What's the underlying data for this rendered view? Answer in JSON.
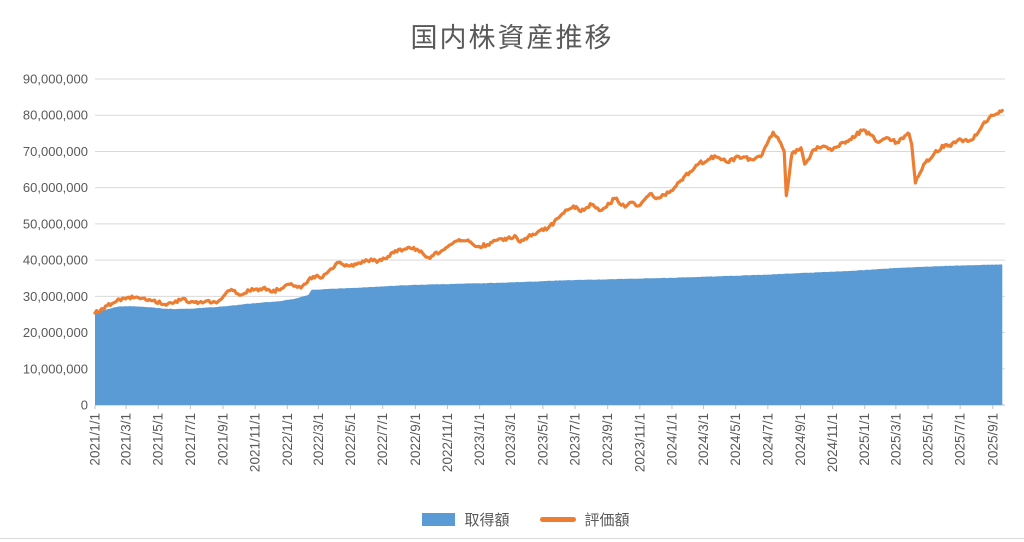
{
  "chart_data": {
    "type": "combo-area-line",
    "title": "国内株資産推移",
    "legend_position": "bottom",
    "grid": "horizontal-only",
    "colors": {
      "text": "#595959",
      "gridline": "#D9D9D9",
      "axis_line": "#BFBFBF",
      "background": "#FFFFFF"
    },
    "y_axis": {
      "min": 0,
      "max": 90000000,
      "step": 10000000,
      "tick_labels": [
        "0",
        "10,000,000",
        "20,000,000",
        "30,000,000",
        "40,000,000",
        "50,000,000",
        "60,000,000",
        "70,000,000",
        "80,000,000",
        "90,000,000"
      ]
    },
    "x_axis": {
      "start": "2021/1/1",
      "end": "2025/9/26",
      "tick_labels": [
        "2021/1/1",
        "2021/3/1",
        "2021/5/1",
        "2021/7/1",
        "2021/9/1",
        "2021/11/1",
        "2022/1/1",
        "2022/3/1",
        "2022/5/1",
        "2022/7/1",
        "2022/9/1",
        "2022/11/1",
        "2023/1/1",
        "2023/3/1",
        "2023/5/1",
        "2023/7/1",
        "2023/9/1",
        "2023/11/1",
        "2024/1/1",
        "2024/3/1",
        "2024/5/1",
        "2024/7/1",
        "2024/9/1",
        "2024/11/1",
        "2025/1/1",
        "2025/3/1",
        "2025/5/1",
        "2025/7/1",
        "2025/9/1"
      ]
    },
    "series": [
      {
        "name": "取得額",
        "type": "area",
        "color": "#5B9BD5",
        "points": [
          [
            "2021/1/1",
            25500000
          ],
          [
            "2021/1/20",
            26300000
          ],
          [
            "2021/2/15",
            27200000
          ],
          [
            "2021/3/10",
            27300000
          ],
          [
            "2021/4/15",
            27000000
          ],
          [
            "2021/5/20",
            26500000
          ],
          [
            "2021/7/1",
            26600000
          ],
          [
            "2021/8/15",
            27000000
          ],
          [
            "2021/9/15",
            27400000
          ],
          [
            "2021/10/15",
            27900000
          ],
          [
            "2021/11/15",
            28300000
          ],
          [
            "2021/12/15",
            28600000
          ],
          [
            "2022/1/15",
            29300000
          ],
          [
            "2022/2/10",
            30400000
          ],
          [
            "2022/2/16",
            31800000
          ],
          [
            "2022/3/15",
            32000000
          ],
          [
            "2022/5/1",
            32300000
          ],
          [
            "2022/6/15",
            32600000
          ],
          [
            "2022/8/1",
            33000000
          ],
          [
            "2022/10/1",
            33300000
          ],
          [
            "2022/12/1",
            33500000
          ],
          [
            "2023/2/1",
            33700000
          ],
          [
            "2023/4/1",
            34000000
          ],
          [
            "2023/5/15",
            34300000
          ],
          [
            "2023/7/1",
            34500000
          ],
          [
            "2023/9/1",
            34700000
          ],
          [
            "2023/11/1",
            34900000
          ],
          [
            "2024/1/1",
            35100000
          ],
          [
            "2024/3/1",
            35400000
          ],
          [
            "2024/5/1",
            35700000
          ],
          [
            "2024/7/1",
            36000000
          ],
          [
            "2024/8/15",
            36300000
          ],
          [
            "2024/10/1",
            36600000
          ],
          [
            "2024/12/1",
            37000000
          ],
          [
            "2025/1/15",
            37400000
          ],
          [
            "2025/3/1",
            37800000
          ],
          [
            "2025/4/10",
            38100000
          ],
          [
            "2025/5/15",
            38300000
          ],
          [
            "2025/7/1",
            38500000
          ],
          [
            "2025/8/15",
            38700000
          ],
          [
            "2025/9/19",
            38800000
          ]
        ]
      },
      {
        "name": "評価額",
        "type": "line",
        "color": "#ED7D31",
        "points": [
          [
            "2021/1/1",
            25400000
          ],
          [
            "2021/1/15",
            26600000
          ],
          [
            "2021/2/16",
            29200000
          ],
          [
            "2021/3/18",
            29700000
          ],
          [
            "2021/4/5",
            29500000
          ],
          [
            "2021/4/21",
            28800000
          ],
          [
            "2021/5/13",
            27800000
          ],
          [
            "2021/6/15",
            29200000
          ],
          [
            "2021/7/9",
            28300000
          ],
          [
            "2021/8/2",
            28800000
          ],
          [
            "2021/8/20",
            28200000
          ],
          [
            "2021/9/14",
            31600000
          ],
          [
            "2021/10/6",
            30400000
          ],
          [
            "2021/10/20",
            31500000
          ],
          [
            "2021/11/16",
            32300000
          ],
          [
            "2021/11/30",
            31300000
          ],
          [
            "2021/12/15",
            31800000
          ],
          [
            "2022/1/5",
            33300000
          ],
          [
            "2022/1/27",
            32300000
          ],
          [
            "2022/2/10",
            34500000
          ],
          [
            "2022/2/24",
            35600000
          ],
          [
            "2022/3/9",
            35200000
          ],
          [
            "2022/3/25",
            37600000
          ],
          [
            "2022/4/8",
            39300000
          ],
          [
            "2022/4/27",
            38400000
          ],
          [
            "2022/5/12",
            38800000
          ],
          [
            "2022/5/27",
            39500000
          ],
          [
            "2022/6/9",
            40300000
          ],
          [
            "2022/6/20",
            39400000
          ],
          [
            "2022/7/22",
            42000000
          ],
          [
            "2022/8/17",
            43400000
          ],
          [
            "2022/9/6",
            42800000
          ],
          [
            "2022/9/26",
            40700000
          ],
          [
            "2022/10/20",
            42500000
          ],
          [
            "2022/11/11",
            44600000
          ],
          [
            "2022/11/25",
            45300000
          ],
          [
            "2022/12/15",
            45000000
          ],
          [
            "2022/12/28",
            43700000
          ],
          [
            "2023/1/16",
            44300000
          ],
          [
            "2023/2/6",
            45800000
          ],
          [
            "2023/2/20",
            45500000
          ],
          [
            "2023/3/9",
            46800000
          ],
          [
            "2023/3/16",
            45200000
          ],
          [
            "2023/4/3",
            46500000
          ],
          [
            "2023/4/20",
            47600000
          ],
          [
            "2023/5/11",
            48800000
          ],
          [
            "2023/5/29",
            51500000
          ],
          [
            "2023/6/16",
            53800000
          ],
          [
            "2023/7/3",
            54800000
          ],
          [
            "2023/7/12",
            53400000
          ],
          [
            "2023/8/1",
            55300000
          ],
          [
            "2023/8/18",
            53700000
          ],
          [
            "2023/9/15",
            57000000
          ],
          [
            "2023/10/4",
            54600000
          ],
          [
            "2023/10/16",
            56000000
          ],
          [
            "2023/10/30",
            55000000
          ],
          [
            "2023/11/20",
            58300000
          ],
          [
            "2023/12/5",
            57200000
          ],
          [
            "2023/12/27",
            58600000
          ],
          [
            "2024/1/9",
            60500000
          ],
          [
            "2024/1/23",
            62800000
          ],
          [
            "2024/2/13",
            65500000
          ],
          [
            "2024/2/22",
            66800000
          ],
          [
            "2024/3/7",
            67300000
          ],
          [
            "2024/3/22",
            68800000
          ],
          [
            "2024/4/15",
            67000000
          ],
          [
            "2024/5/7",
            68600000
          ],
          [
            "2024/5/30",
            67800000
          ],
          [
            "2024/6/20",
            69000000
          ],
          [
            "2024/7/11",
            75300000
          ],
          [
            "2024/7/25",
            72500000
          ],
          [
            "2024/8/1",
            70000000
          ],
          [
            "2024/8/5",
            57800000
          ],
          [
            "2024/8/16",
            69500000
          ],
          [
            "2024/9/2",
            71000000
          ],
          [
            "2024/9/9",
            66500000
          ],
          [
            "2024/9/27",
            70500000
          ],
          [
            "2024/10/15",
            71500000
          ],
          [
            "2024/11/1",
            70500000
          ],
          [
            "2024/11/27",
            72800000
          ],
          [
            "2024/12/27",
            75800000
          ],
          [
            "2025/1/14",
            74500000
          ],
          [
            "2025/1/27",
            72500000
          ],
          [
            "2025/2/13",
            73800000
          ],
          [
            "2025/3/3",
            72500000
          ],
          [
            "2025/3/26",
            74800000
          ],
          [
            "2025/3/31",
            72000000
          ],
          [
            "2025/4/7",
            61300000
          ],
          [
            "2025/4/23",
            66500000
          ],
          [
            "2025/5/13",
            69500000
          ],
          [
            "2025/6/2",
            71800000
          ],
          [
            "2025/6/13",
            71400000
          ],
          [
            "2025/6/27",
            73200000
          ],
          [
            "2025/7/17",
            72800000
          ],
          [
            "2025/8/1",
            74500000
          ],
          [
            "2025/8/13",
            77500000
          ],
          [
            "2025/8/29",
            80000000
          ],
          [
            "2025/9/8",
            80400000
          ],
          [
            "2025/9/19",
            81300000
          ]
        ]
      }
    ]
  }
}
